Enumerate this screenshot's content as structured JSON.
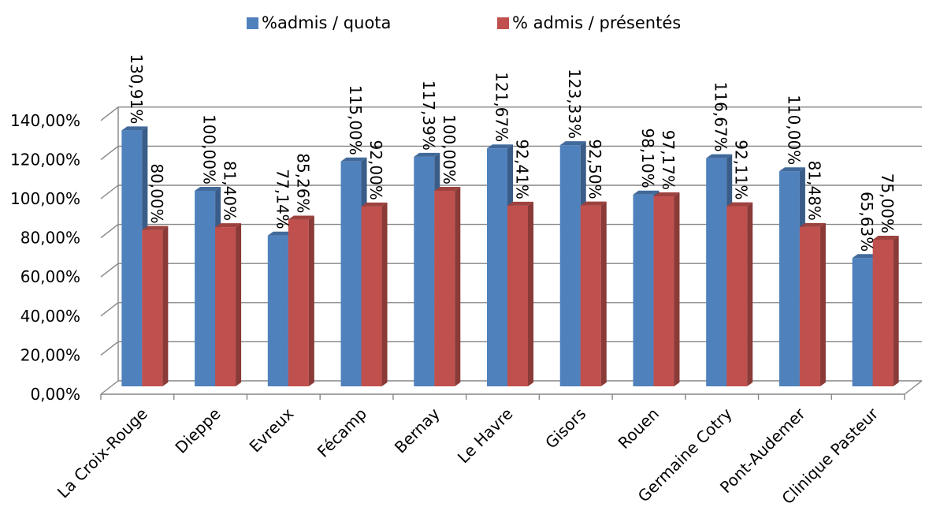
{
  "chart_data": {
    "type": "bar",
    "title": "",
    "xlabel": "",
    "ylabel": "",
    "ylim": [
      0,
      140
    ],
    "yticks": [
      0,
      20,
      40,
      60,
      80,
      100,
      120,
      140
    ],
    "ytick_labels": [
      "0,00%",
      "20,00%",
      "40,00%",
      "60,00%",
      "80,00%",
      "100,00%",
      "120,00%",
      "140,00%"
    ],
    "grid": true,
    "three_d": true,
    "legend_position": "top",
    "categories": [
      "La Croix-Rouge",
      "Dieppe",
      "Evreux",
      "Fécamp",
      "Bernay",
      "Le Havre",
      "Gisors",
      "Rouen",
      "Germaine Cotry",
      "Pont-Audemer",
      "Clinique Pasteur"
    ],
    "series": [
      {
        "name": "%admis / quota",
        "color": "#4f81bd",
        "values": [
          130.91,
          100.0,
          77.14,
          115.0,
          117.39,
          121.67,
          123.33,
          98.1,
          116.67,
          110.0,
          65.63
        ],
        "labels": [
          "130,91%",
          "100,00%",
          "77,14%",
          "115,00%",
          "117,39%",
          "121,67%",
          "123,33%",
          "98,10%",
          "116,67%",
          "110,00%",
          "65,63%"
        ]
      },
      {
        "name": "% admis / présentés",
        "color": "#c0504d",
        "values": [
          80.0,
          81.4,
          85.26,
          92.0,
          100.0,
          92.41,
          92.5,
          97.17,
          92.11,
          81.48,
          75.0
        ],
        "labels": [
          "80,00%",
          "81,40%",
          "85,26%",
          "92,00%",
          "100,00%",
          "92,41%",
          "92,50%",
          "97,17%",
          "92,11%",
          "81,48%",
          "75,00%"
        ]
      }
    ]
  }
}
